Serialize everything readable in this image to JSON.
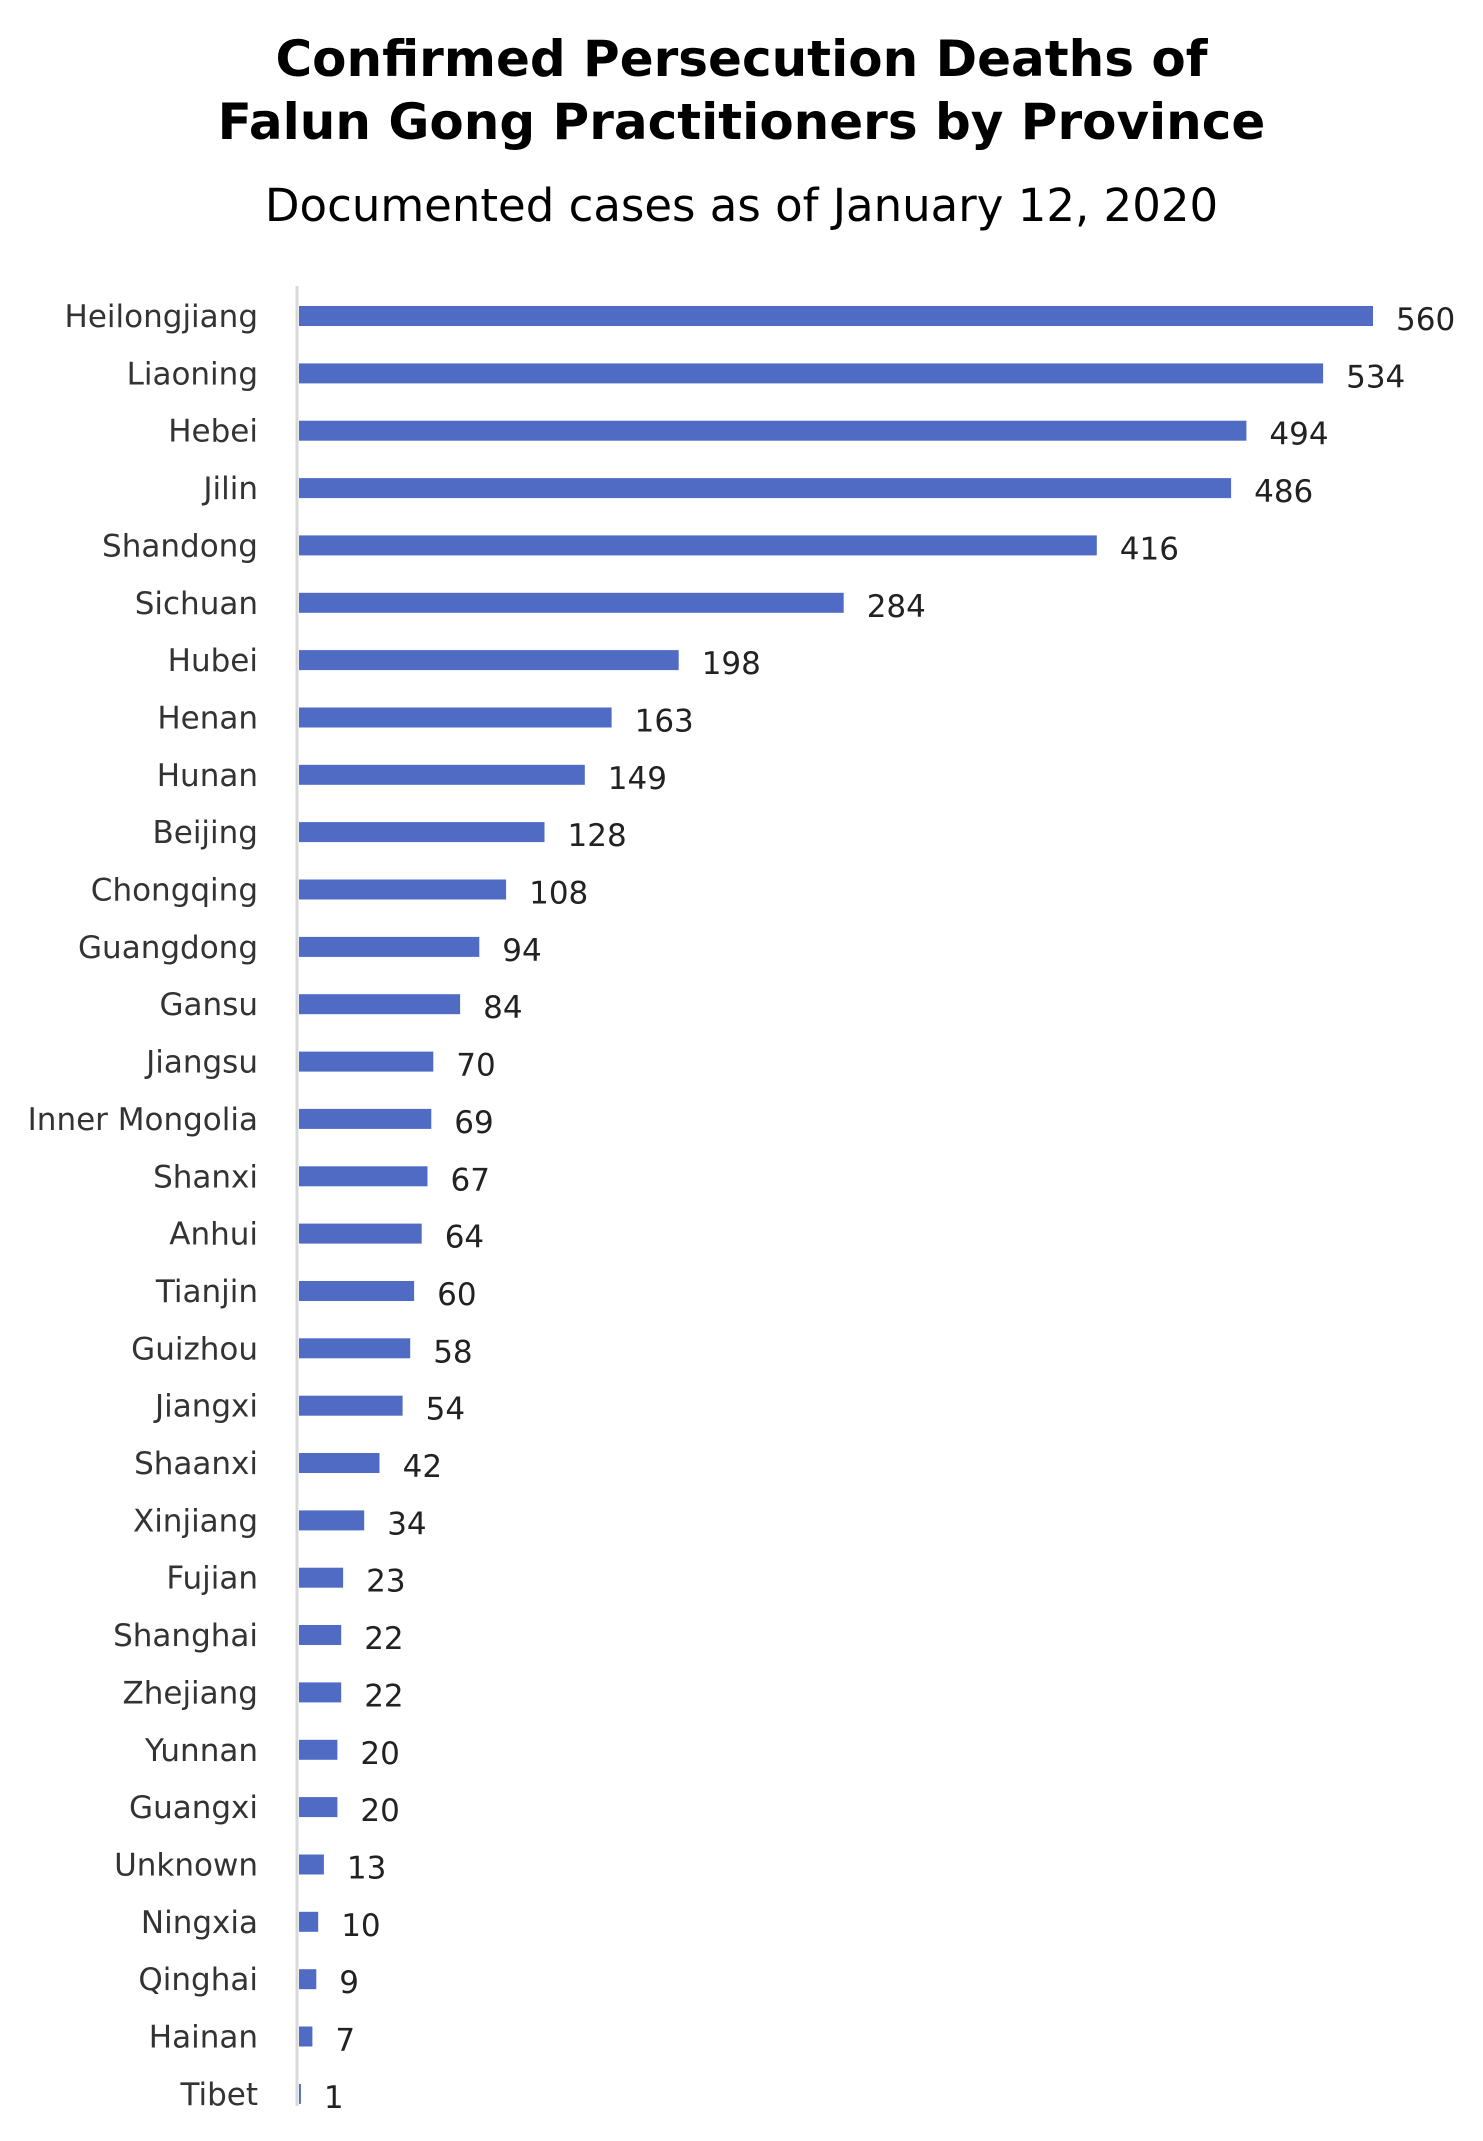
{
  "chart_data": {
    "type": "bar",
    "orientation": "horizontal",
    "title_lines": [
      "Confirmed Persecution Deaths of",
      "Falun Gong Practitioners by Province"
    ],
    "subtitle": "Documented cases as of January 12, 2020",
    "categories": [
      "Heilongjiang",
      "Liaoning",
      "Hebei",
      "Jilin",
      "Shandong",
      "Sichuan",
      "Hubei",
      "Henan",
      "Hunan",
      "Beijing",
      "Chongqing",
      "Guangdong",
      "Gansu",
      "Jiangsu",
      "Inner Mongolia",
      "Shanxi",
      "Anhui",
      "Tianjin",
      "Guizhou",
      "Jiangxi",
      "Shaanxi",
      "Xinjiang",
      "Fujian",
      "Shanghai",
      "Zhejiang",
      "Yunnan",
      "Guangxi",
      "Unknown",
      "Ningxia",
      "Qinghai",
      "Hainan",
      "Tibet"
    ],
    "values": [
      560,
      534,
      494,
      486,
      416,
      284,
      198,
      163,
      149,
      128,
      108,
      94,
      84,
      70,
      69,
      67,
      64,
      60,
      58,
      54,
      42,
      34,
      23,
      22,
      22,
      20,
      20,
      13,
      10,
      9,
      7,
      1
    ],
    "data_labels": true,
    "bar_color": "#4F6BC4",
    "axis_line_color": "#D9D9D9",
    "grid": false,
    "legend": "none"
  }
}
